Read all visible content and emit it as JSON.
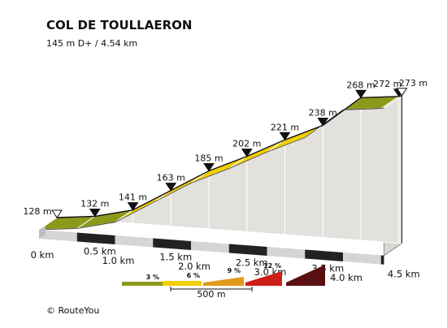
{
  "chart_data": {
    "type": "area",
    "title": "COL DE TOULLAERON",
    "subtitle": "145 m D+ / 4.54 km",
    "x_unit": "km",
    "y_unit": "m",
    "xlim": [
      0,
      4.54
    ],
    "x_tick_labels": [
      "0 km",
      "0.5 km",
      "1.0 km",
      "1.5 km",
      "2.0 km",
      "2.5 km",
      "3.0 km",
      "3.5 km",
      "4.0 km",
      "4.5 km"
    ],
    "x_ticks": [
      0,
      0.5,
      1.0,
      1.5,
      2.0,
      2.5,
      3.0,
      3.5,
      4.0,
      4.5
    ],
    "profile": [
      {
        "km": 0.0,
        "elev": 128,
        "label": "128 m",
        "marker": "start"
      },
      {
        "km": 0.5,
        "elev": 132,
        "label": "132 m",
        "marker": "point"
      },
      {
        "km": 1.0,
        "elev": 141,
        "label": "141 m",
        "marker": "point"
      },
      {
        "km": 1.5,
        "elev": 163,
        "label": "163 m",
        "marker": "point"
      },
      {
        "km": 2.0,
        "elev": 185,
        "label": "185 m",
        "marker": "point"
      },
      {
        "km": 2.5,
        "elev": 202,
        "label": "202 m",
        "marker": "point"
      },
      {
        "km": 3.0,
        "elev": 221,
        "label": "221 m",
        "marker": "point"
      },
      {
        "km": 3.5,
        "elev": 238,
        "label": "238 m",
        "marker": "point"
      },
      {
        "km": 4.0,
        "elev": 268,
        "label": "268 m",
        "marker": "point"
      },
      {
        "km": 4.5,
        "elev": 272,
        "label": "272 m",
        "marker": "point"
      },
      {
        "km": 4.54,
        "elev": 273,
        "label": "273 m",
        "marker": "end"
      }
    ],
    "segment_classes": [
      "3",
      "3",
      "6",
      "6",
      "6",
      "6",
      "6",
      "6",
      "3"
    ],
    "legend": [
      {
        "label": "3 %",
        "color": "#8c9a1c"
      },
      {
        "label": "6 %",
        "color": "#f2cf00"
      },
      {
        "label": "9 %",
        "color": "#cc1f1a"
      },
      {
        "label": "12 %",
        "color": "#5a1010"
      }
    ],
    "legend_gradient_mid": "#e09a1a",
    "scale_bar_label": "500 m",
    "colors": {
      "gentle": "#8c9a1c",
      "moderate": "#f2cf00",
      "side": "#e3e1de",
      "base": "#d5d5d5",
      "base_dark": "#222222"
    }
  },
  "credit": "© RouteYou"
}
